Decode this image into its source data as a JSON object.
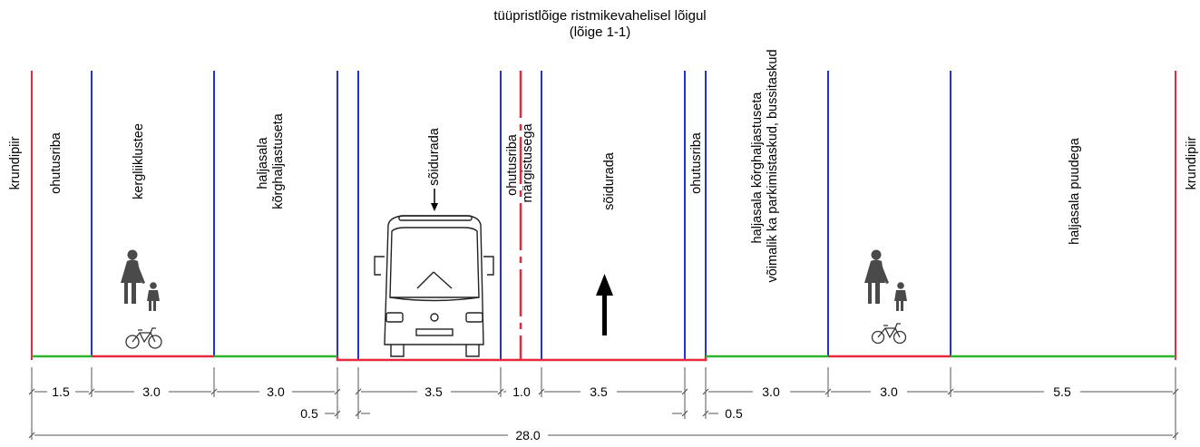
{
  "title_line1": "tüüpristlõige ristmikevahelisel lõigul",
  "title_line2": "(lõige 1-1)",
  "zone_labels": [
    {
      "id": "krundipiir-left",
      "lines": [
        "krundipiir"
      ]
    },
    {
      "id": "ohutusriba-1",
      "lines": [
        "ohutusriba"
      ]
    },
    {
      "id": "kergliiklustee",
      "lines": [
        "kergliiklustee"
      ]
    },
    {
      "id": "haljasala-left",
      "lines": [
        "haljasala",
        "kõrghaljastuseta"
      ]
    },
    {
      "id": "soidurada-left",
      "lines": [
        "sõidurada"
      ]
    },
    {
      "id": "ohutusriba-margistus",
      "lines": [
        "ohutusriba",
        "märgistusega"
      ]
    },
    {
      "id": "soidurada-right",
      "lines": [
        "sõidurada"
      ]
    },
    {
      "id": "ohutusriba-2",
      "lines": [
        "ohutusriba"
      ]
    },
    {
      "id": "haljasala-right",
      "lines": [
        "haljasala kõrghaljastuseta",
        "võimalik ka parkimistaskud, bussitaskud"
      ]
    },
    {
      "id": "haljasala-puudega",
      "lines": [
        "haljasala puudega"
      ]
    },
    {
      "id": "krundipiir-right",
      "lines": [
        "krundipiir"
      ]
    }
  ],
  "dimensions": [
    {
      "id": "dim-1-5",
      "label": "1.5"
    },
    {
      "id": "dim-3-0-a",
      "label": "3.0"
    },
    {
      "id": "dim-3-0-b",
      "label": "3.0"
    },
    {
      "id": "dim-0-5-a",
      "label": "0.5"
    },
    {
      "id": "dim-3-5-a",
      "label": "3.5"
    },
    {
      "id": "dim-1-0",
      "label": "1.0"
    },
    {
      "id": "dim-3-5-b",
      "label": "3.5"
    },
    {
      "id": "dim-0-5-b",
      "label": "0.5"
    },
    {
      "id": "dim-3-0-c",
      "label": "3.0"
    },
    {
      "id": "dim-3-0-d",
      "label": "3.0"
    },
    {
      "id": "dim-5-5",
      "label": "5.5"
    },
    {
      "id": "dim-total",
      "label": "28.0"
    }
  ],
  "icons": [
    "pedestrian-icon",
    "bicycle-icon",
    "bus-icon",
    "direction-arrow-icon"
  ],
  "colors": {
    "property_line": "#e8283c",
    "lane_line": "#2233cc",
    "green_area": "#2db52d",
    "paved_surface": "#e8283c",
    "text": "#000000"
  }
}
